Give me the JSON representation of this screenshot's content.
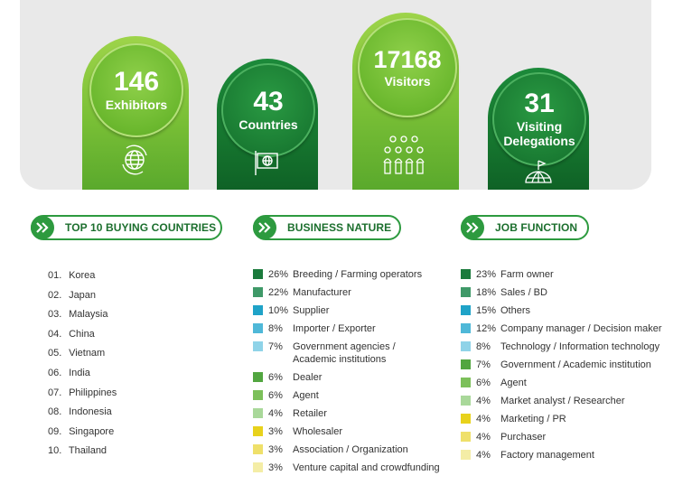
{
  "stats": [
    {
      "value": "146",
      "label": "Exhibitors",
      "icon": "globe-icon"
    },
    {
      "value": "43",
      "label": "Countries",
      "icon": "flag-globe-icon"
    },
    {
      "value": "17168",
      "label": "Visitors",
      "icon": "crowd-icon"
    },
    {
      "value": "31",
      "label": "Visiting Delegations",
      "icon": "dome-flag-icon"
    }
  ],
  "sections": {
    "countries_title": "TOP 10 BUYING COUNTRIES",
    "business_title": "BUSINESS NATURE",
    "job_title": "JOB FUNCTION"
  },
  "countries": [
    {
      "idx": "01.",
      "name": "Korea"
    },
    {
      "idx": "02.",
      "name": "Japan"
    },
    {
      "idx": "03.",
      "name": "Malaysia"
    },
    {
      "idx": "04.",
      "name": "China"
    },
    {
      "idx": "05.",
      "name": "Vietnam"
    },
    {
      "idx": "06.",
      "name": "India"
    },
    {
      "idx": "07.",
      "name": "Philippines"
    },
    {
      "idx": "08.",
      "name": "Indonesia"
    },
    {
      "idx": "09.",
      "name": "Singapore"
    },
    {
      "idx": "10.",
      "name": "Thailand"
    }
  ],
  "business": [
    {
      "pct": "26%",
      "label": "Breeding / Farming operators",
      "color": "#1a7a3c"
    },
    {
      "pct": "22%",
      "label": "Manufacturer",
      "color": "#3f9968"
    },
    {
      "pct": "10%",
      "label": "Supplier",
      "color": "#1fa3c8"
    },
    {
      "pct": "8%",
      "label": "Importer / Exporter",
      "color": "#4fb8d8"
    },
    {
      "pct": "7%",
      "label": "Government agencies / Academic institutions",
      "color": "#8fd3e8"
    },
    {
      "pct": "6%",
      "label": "Dealer",
      "color": "#52a640"
    },
    {
      "pct": "6%",
      "label": "Agent",
      "color": "#7cc05a"
    },
    {
      "pct": "4%",
      "label": "Retailer",
      "color": "#a9d89a"
    },
    {
      "pct": "3%",
      "label": "Wholesaler",
      "color": "#e8d21c"
    },
    {
      "pct": "3%",
      "label": "Association / Organization",
      "color": "#efe06a"
    },
    {
      "pct": "3%",
      "label": "Venture capital and crowdfunding",
      "color": "#f4eda6"
    }
  ],
  "jobs": [
    {
      "pct": "23%",
      "label": "Farm owner",
      "color": "#1a7a3c"
    },
    {
      "pct": "18%",
      "label": "Sales / BD",
      "color": "#3f9968"
    },
    {
      "pct": "15%",
      "label": "Others",
      "color": "#1fa3c8"
    },
    {
      "pct": "12%",
      "label": "Company manager / Decision maker",
      "color": "#4fb8d8"
    },
    {
      "pct": "8%",
      "label": "Technology / Information technology",
      "color": "#8fd3e8"
    },
    {
      "pct": "7%",
      "label": "Government / Academic institution",
      "color": "#52a640"
    },
    {
      "pct": "6%",
      "label": "Agent",
      "color": "#7cc05a"
    },
    {
      "pct": "4%",
      "label": "Market analyst / Researcher",
      "color": "#a9d89a"
    },
    {
      "pct": "4%",
      "label": "Marketing / PR",
      "color": "#e8d21c"
    },
    {
      "pct": "4%",
      "label": "Purchaser",
      "color": "#efe06a"
    },
    {
      "pct": "4%",
      "label": "Factory management",
      "color": "#f4eda6"
    }
  ]
}
